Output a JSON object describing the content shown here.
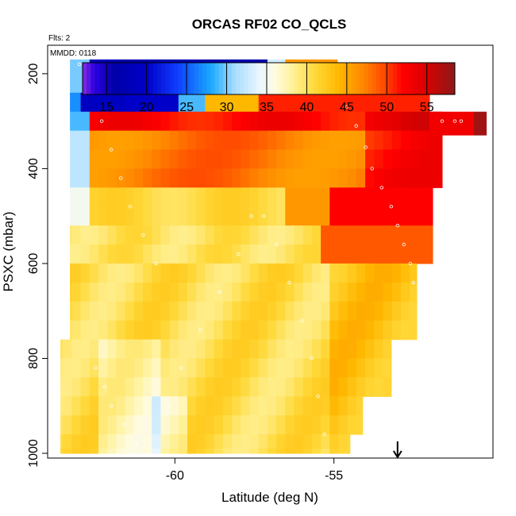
{
  "chart_data": {
    "type": "heatmap",
    "title": "ORCAS RF02 CO_QCLS",
    "annotations": [
      "Flts: 2",
      "MMDD: 0118"
    ],
    "xlabel": "Latitude (deg N)",
    "ylabel": "PSXC (mbar)",
    "xlim": [
      -64.0,
      -50.0
    ],
    "ylim": [
      1010,
      140
    ],
    "y_reversed": true,
    "x_ticks": [
      -60,
      -55
    ],
    "y_ticks": [
      200,
      400,
      600,
      800,
      1000
    ],
    "colorbar": {
      "ticks": [
        15,
        20,
        25,
        30,
        35,
        40,
        45,
        50,
        55
      ],
      "range": [
        12,
        58.5
      ],
      "placement": "top-inside"
    },
    "colors": {
      "stops": [
        [
          12,
          "#8a2be2"
        ],
        [
          13.5,
          "#2a00e0"
        ],
        [
          16,
          "#0000a8"
        ],
        [
          20,
          "#0000c8"
        ],
        [
          24,
          "#1040ff"
        ],
        [
          28,
          "#1aa8ff"
        ],
        [
          31,
          "#a8dcff"
        ],
        [
          34,
          "#e8f6ff"
        ],
        [
          36,
          "#fffbe0"
        ],
        [
          38,
          "#fff3a0"
        ],
        [
          41,
          "#ffd93a"
        ],
        [
          44,
          "#ffb800"
        ],
        [
          47,
          "#ff8800"
        ],
        [
          50,
          "#ff4000"
        ],
        [
          52,
          "#ff0000"
        ],
        [
          55,
          "#d80000"
        ],
        [
          58.5,
          "#8b1a1a"
        ]
      ]
    },
    "grid": false,
    "field": {
      "pressure_levels": [
        180,
        220,
        260,
        300,
        340,
        380,
        420,
        460,
        500,
        540,
        580,
        620,
        660,
        700,
        740,
        780,
        820,
        860,
        900,
        940,
        980,
        1000
      ],
      "latitude_range": [
        -63.8,
        -51.5
      ],
      "description_of_values": "CO mixing ratio (ppb) on latitude-pressure curtain"
    },
    "flight_track": [
      [
        -63.0,
        180
      ],
      [
        -62.5,
        180
      ],
      [
        -62.0,
        180
      ],
      [
        -61.5,
        185
      ],
      [
        -61.2,
        195
      ],
      [
        -60.8,
        215
      ],
      [
        -60.5,
        240
      ],
      [
        -59.5,
        240
      ],
      [
        -59.0,
        230
      ],
      [
        -58.5,
        205
      ],
      [
        -58.0,
        180
      ],
      [
        -57.5,
        180
      ],
      [
        -57.0,
        180
      ],
      [
        -56.5,
        180
      ],
      [
        -56.0,
        180
      ],
      [
        -55.5,
        190
      ],
      [
        -55.2,
        215
      ],
      [
        -55.0,
        235
      ],
      [
        -54.6,
        270
      ],
      [
        -54.3,
        310
      ],
      [
        -54.0,
        355
      ],
      [
        -53.8,
        400
      ],
      [
        -53.5,
        440
      ],
      [
        -53.2,
        480
      ],
      [
        -53.0,
        520
      ],
      [
        -52.8,
        560
      ],
      [
        -52.6,
        600
      ],
      [
        -52.5,
        640
      ],
      [
        -52.3,
        680
      ],
      [
        -52.0,
        720
      ],
      [
        -51.8,
        760
      ],
      [
        -51.6,
        300
      ],
      [
        -51.2,
        300
      ],
      [
        -51.0,
        300
      ],
      [
        -62.5,
        820
      ],
      [
        -62.2,
        860
      ],
      [
        -62.0,
        900
      ],
      [
        -61.6,
        940
      ],
      [
        -61.2,
        980
      ],
      [
        -60.8,
        1000
      ],
      [
        -60.2,
        900
      ],
      [
        -59.8,
        820
      ],
      [
        -59.2,
        740
      ],
      [
        -58.6,
        660
      ],
      [
        -58.0,
        580
      ],
      [
        -57.6,
        500
      ],
      [
        -57.2,
        500
      ],
      [
        -56.8,
        560
      ],
      [
        -56.4,
        640
      ],
      [
        -56.0,
        720
      ],
      [
        -55.7,
        800
      ],
      [
        -55.5,
        880
      ],
      [
        -55.3,
        960
      ],
      [
        -62.3,
        300
      ],
      [
        -62.0,
        360
      ],
      [
        -61.7,
        420
      ],
      [
        -61.4,
        480
      ],
      [
        -61.0,
        540
      ],
      [
        -60.6,
        600
      ]
    ],
    "marker": {
      "symbol": "arrow-down",
      "x": -53.0
    }
  }
}
